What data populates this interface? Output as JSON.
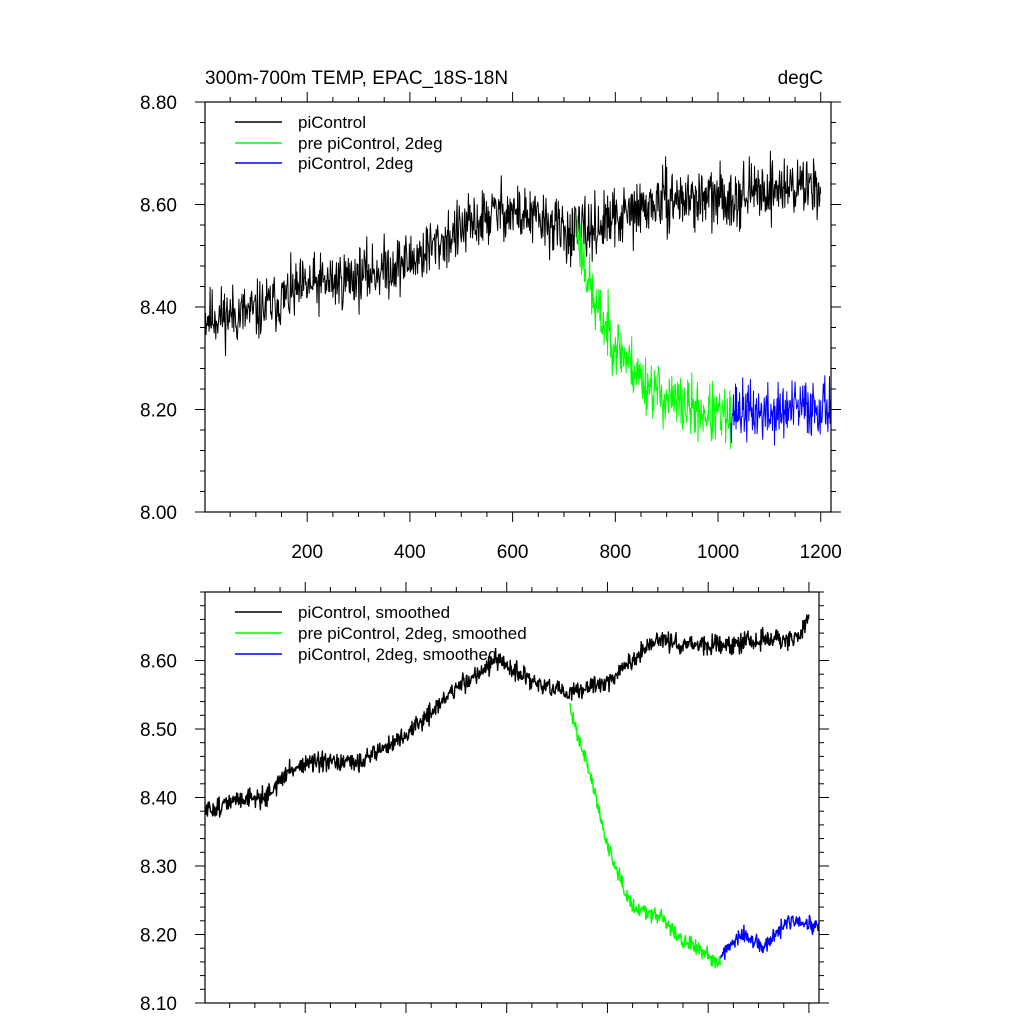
{
  "chart_data": [
    {
      "type": "line",
      "title": "300m-700m TEMP, EPAC_18S-18N",
      "units_label": "degC",
      "xlim": [
        1,
        1220
      ],
      "ylim": [
        8.0,
        8.8
      ],
      "x_ticks": [
        200,
        400,
        600,
        800,
        1000,
        1200
      ],
      "x_tick_labels": [
        "200",
        "400",
        "600",
        "800",
        "1000",
        "1200"
      ],
      "y_ticks": [
        8.0,
        8.2,
        8.4,
        8.6,
        8.8
      ],
      "y_tick_labels": [
        "8.00",
        "8.20",
        "8.40",
        "8.60",
        "8.80"
      ],
      "legend_position": "top-left",
      "series": [
        {
          "name": "piControl",
          "color": "#000000",
          "x_start": 1,
          "x_end": 1200,
          "noise": 0.05,
          "seed": 11,
          "anchors": [
            [
              1,
              8.38
            ],
            [
              100,
              8.39
            ],
            [
              200,
              8.44
            ],
            [
              300,
              8.46
            ],
            [
              400,
              8.49
            ],
            [
              500,
              8.55
            ],
            [
              580,
              8.59
            ],
            [
              650,
              8.57
            ],
            [
              720,
              8.54
            ],
            [
              800,
              8.57
            ],
            [
              900,
              8.61
            ],
            [
              1000,
              8.61
            ],
            [
              1100,
              8.63
            ],
            [
              1200,
              8.64
            ]
          ]
        },
        {
          "name": "pre piControl, 2deg",
          "color": "#00ff00",
          "x_start": 725,
          "x_end": 1025,
          "noise": 0.05,
          "seed": 23,
          "anchors": [
            [
              725,
              8.55
            ],
            [
              760,
              8.4
            ],
            [
              800,
              8.33
            ],
            [
              850,
              8.26
            ],
            [
              900,
              8.22
            ],
            [
              950,
              8.2
            ],
            [
              1025,
              8.18
            ]
          ]
        },
        {
          "name": "piControl, 2deg",
          "color": "#0000ff",
          "x_start": 1025,
          "x_end": 1220,
          "noise": 0.05,
          "seed": 37,
          "anchors": [
            [
              1025,
              8.2
            ],
            [
              1100,
              8.19
            ],
            [
              1150,
              8.2
            ],
            [
              1220,
              8.21
            ]
          ]
        }
      ]
    },
    {
      "type": "line",
      "title": "",
      "xlim": [
        1,
        1220
      ],
      "ylim": [
        8.1,
        8.7
      ],
      "x_ticks": [
        200,
        400,
        600,
        800,
        1000,
        1200
      ],
      "x_tick_labels": [],
      "y_ticks": [
        8.1,
        8.2,
        8.3,
        8.4,
        8.5,
        8.6
      ],
      "y_tick_labels": [
        "8.10",
        "8.20",
        "8.30",
        "8.40",
        "8.50",
        "8.60"
      ],
      "legend_position": "top-left",
      "series": [
        {
          "name": "piControl, smoothed",
          "color": "#000000",
          "x_start": 1,
          "x_end": 1200,
          "noise": 0.012,
          "seed": 51,
          "anchors": [
            [
              1,
              8.38
            ],
            [
              80,
              8.4
            ],
            [
              120,
              8.4
            ],
            [
              170,
              8.44
            ],
            [
              200,
              8.45
            ],
            [
              300,
              8.45
            ],
            [
              400,
              8.49
            ],
            [
              500,
              8.56
            ],
            [
              580,
              8.6
            ],
            [
              650,
              8.57
            ],
            [
              720,
              8.55
            ],
            [
              800,
              8.57
            ],
            [
              900,
              8.63
            ],
            [
              1000,
              8.62
            ],
            [
              1100,
              8.63
            ],
            [
              1180,
              8.63
            ],
            [
              1200,
              8.67
            ]
          ]
        },
        {
          "name": "pre piControl, 2deg, smoothed",
          "color": "#00ff00",
          "x_start": 725,
          "x_end": 1025,
          "noise": 0.01,
          "seed": 63,
          "anchors": [
            [
              725,
              8.53
            ],
            [
              760,
              8.45
            ],
            [
              800,
              8.33
            ],
            [
              850,
              8.24
            ],
            [
              900,
              8.23
            ],
            [
              950,
              8.19
            ],
            [
              1025,
              8.16
            ]
          ]
        },
        {
          "name": "piControl, 2deg, smoothed",
          "color": "#0000ff",
          "x_start": 1025,
          "x_end": 1220,
          "noise": 0.01,
          "seed": 77,
          "anchors": [
            [
              1025,
              8.17
            ],
            [
              1070,
              8.2
            ],
            [
              1110,
              8.18
            ],
            [
              1160,
              8.22
            ],
            [
              1220,
              8.21
            ]
          ]
        }
      ]
    }
  ]
}
